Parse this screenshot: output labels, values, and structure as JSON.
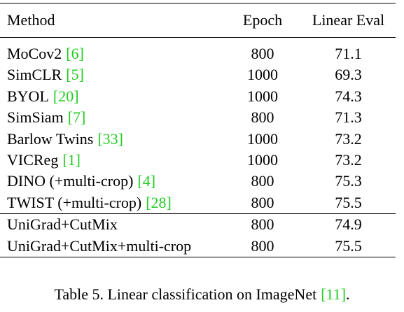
{
  "table": {
    "header": [
      "Method",
      "Epoch",
      "Linear Eval"
    ],
    "sections": [
      [
        {
          "method": "MoCov2",
          "cite": "[6]",
          "epoch": 800,
          "eval": 71.1
        },
        {
          "method": "SimCLR",
          "cite": "[5]",
          "epoch": 1000,
          "eval": 69.3
        },
        {
          "method": "BYOL",
          "cite": "[20]",
          "epoch": 1000,
          "eval": 74.3
        },
        {
          "method": "SimSiam",
          "cite": "[7]",
          "epoch": 800,
          "eval": 71.3
        },
        {
          "method": "Barlow Twins",
          "cite": "[33]",
          "epoch": 1000,
          "eval": 73.2
        },
        {
          "method": "VICReg",
          "cite": "[1]",
          "epoch": 1000,
          "eval": 73.2
        },
        {
          "method": "DINO (+multi-crop)",
          "cite": "[4]",
          "epoch": 800,
          "eval": 75.3
        },
        {
          "method": "TWIST (+multi-crop)",
          "cite": "[28]",
          "epoch": 800,
          "eval": 75.5
        }
      ],
      [
        {
          "method": "UniGrad+CutMix",
          "epoch": 800,
          "eval": 74.9
        },
        {
          "method": "UniGrad+CutMix+multi-crop",
          "epoch": 800,
          "eval": 75.5
        }
      ]
    ]
  },
  "caption": {
    "text": "Table 5. Linear classification on ImageNet",
    "cite": "[11]",
    "end": "."
  }
}
